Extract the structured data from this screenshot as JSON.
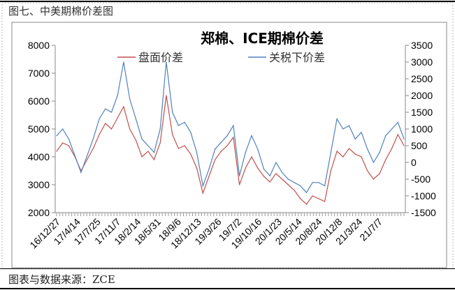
{
  "figure_title": "图七、中美期棉价差图",
  "source": "图表与数据来源：ZCE",
  "chart_data": {
    "type": "line",
    "title": "郑棉、ICE期棉价差",
    "x": [
      "16/12",
      "17/1",
      "17/2",
      "17/3",
      "17/4",
      "17/5",
      "17/6",
      "17/7",
      "17/8",
      "17/9",
      "17/10",
      "17/11",
      "17/12",
      "18/1",
      "18/2",
      "18/3",
      "18/4",
      "18/5",
      "18/6",
      "18/7",
      "18/8",
      "18/9",
      "18/10",
      "18/11",
      "18/12",
      "19/1",
      "19/2",
      "19/3",
      "19/4",
      "19/5",
      "19/6",
      "19/7",
      "19/8",
      "19/9",
      "19/10",
      "19/11",
      "19/12",
      "20/1",
      "20/2",
      "20/3",
      "20/4",
      "20/5",
      "20/6",
      "20/7",
      "20/8",
      "20/9",
      "20/10",
      "20/11",
      "20/12",
      "21/1",
      "21/2",
      "21/3",
      "21/4",
      "21/5",
      "21/6",
      "21/7",
      "21/8",
      "21/9"
    ],
    "x_tick_labels": [
      "16/12/27",
      "17/4/14",
      "17/7/25",
      "17/11/7",
      "18/2/14",
      "18/5/31",
      "18/9/6",
      "18/12/13",
      "19/3/26",
      "19/7/2",
      "19/10/16",
      "20/1/23",
      "20/5/14",
      "20/8/24",
      "20/12/8",
      "21/3/24",
      "21/7/7"
    ],
    "left_axis": {
      "ylim": [
        2000,
        8000
      ],
      "ticks": [
        2000,
        3000,
        4000,
        5000,
        6000,
        7000,
        8000
      ]
    },
    "right_axis": {
      "ylim": [
        -1500,
        3500
      ],
      "ticks": [
        -1500,
        -1000,
        -500,
        0,
        500,
        1000,
        1500,
        2000,
        2500,
        3000,
        3500
      ]
    },
    "legend_placement": "top-center",
    "grid": false,
    "series": [
      {
        "name": "盘面价差",
        "axis": "left",
        "color": "#C0504D",
        "values": [
          4200,
          4500,
          4400,
          4000,
          3500,
          3900,
          4300,
          4800,
          5200,
          5000,
          5400,
          5800,
          5000,
          4600,
          4000,
          4200,
          3900,
          4500,
          6200,
          4800,
          4300,
          4400,
          4100,
          3600,
          2700,
          3300,
          3900,
          4200,
          4400,
          4700,
          3000,
          3600,
          4000,
          3600,
          3300,
          3100,
          3400,
          3200,
          3000,
          2800,
          2500,
          2300,
          2600,
          2500,
          2400,
          3500,
          4200,
          4000,
          4300,
          4100,
          4000,
          3500,
          3200,
          3400,
          3900,
          4300,
          4800,
          4400
        ]
      },
      {
        "name": "关税下价差",
        "axis": "right",
        "color": "#4F81BD",
        "values": [
          800,
          1000,
          700,
          200,
          -300,
          200,
          700,
          1300,
          1600,
          1500,
          2000,
          3000,
          1900,
          1300,
          700,
          500,
          300,
          1000,
          3000,
          1500,
          1100,
          1200,
          900,
          300,
          -700,
          -200,
          400,
          600,
          800,
          1100,
          -400,
          300,
          800,
          400,
          -200,
          -400,
          0,
          -300,
          -500,
          -600,
          -700,
          -900,
          -600,
          -600,
          -700,
          300,
          1300,
          1000,
          1100,
          700,
          900,
          400,
          0,
          300,
          800,
          1000,
          1200,
          700
        ]
      }
    ]
  }
}
